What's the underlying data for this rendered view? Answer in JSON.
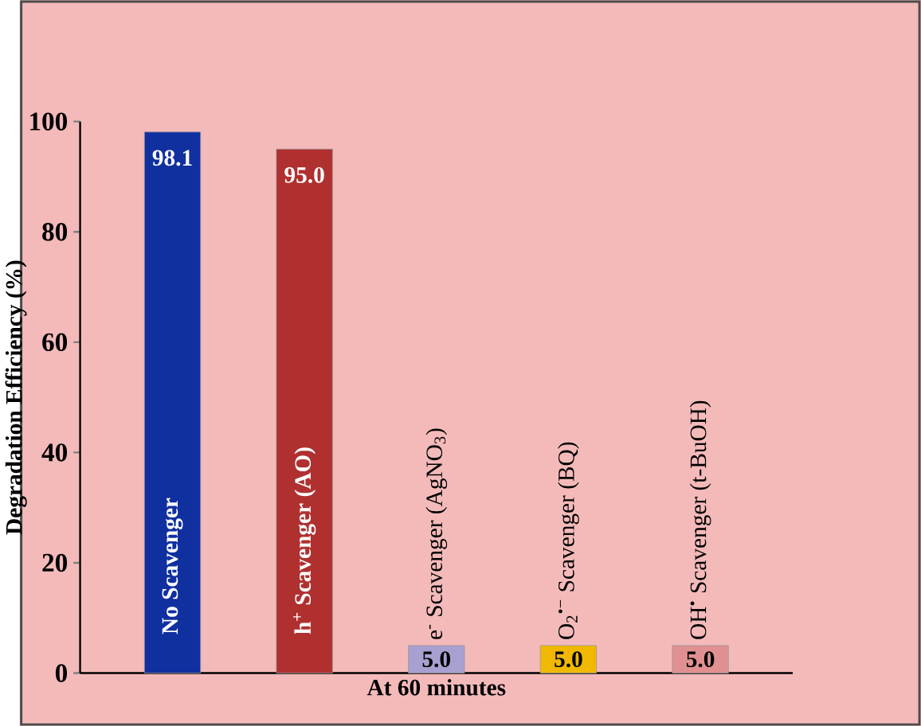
{
  "chart_data": {
    "type": "bar",
    "xlabel": "At 60 minutes",
    "ylabel": "Degradation Efficiency (%)",
    "categories": [
      "No Scavenger",
      "h$^{+}$ Scavenger (AO)",
      "e$^{-}$ Scavenger (AgNO$_{3}$)",
      "O$_{2}$$^{•−}$ Scavenger (BQ)",
      "OH$^{•}$ Scavenger (t-BuOH)"
    ],
    "values": [
      98.1,
      95.0,
      5.0,
      5.0,
      5.0
    ],
    "colors": [
      "#1030a0",
      "#b03030",
      "#a8a0d0",
      "#f0b800",
      "#e09090"
    ],
    "value_labels": [
      "98.1",
      "95.0",
      "5.0",
      "5.0",
      "5.0"
    ],
    "ylim": [
      0,
      100
    ],
    "yticks": [
      0,
      20,
      40,
      60,
      80,
      100
    ]
  }
}
